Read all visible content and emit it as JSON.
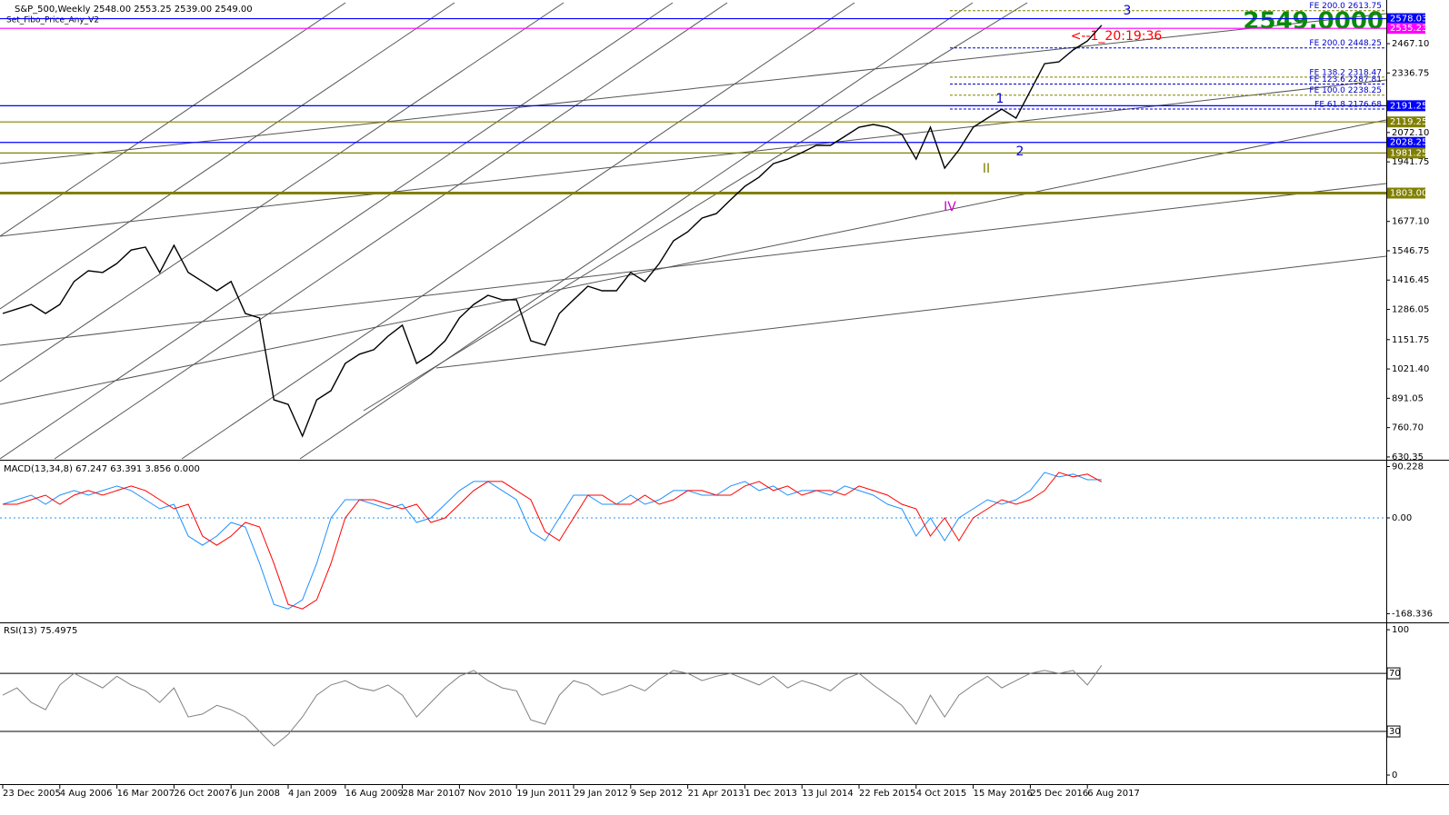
{
  "chart_data": [
    {
      "type": "line",
      "title": "S&P_500,Weekly  2548.00 2553.25 2539.00 2549.00",
      "subtitle": "Set_Fibo_Price_Any_V2",
      "price_label": "2549.0000",
      "categories": [
        "23 Dec 2005",
        null,
        null,
        null,
        "4 Aug 2006",
        null,
        null,
        null,
        "16 Mar 2007",
        null,
        null,
        null,
        "26 Oct 2007",
        null,
        null,
        null,
        "6 Jun 2008",
        null,
        null,
        null,
        "4 Jan 2009",
        null,
        null,
        null,
        "16 Aug 2009",
        null,
        null,
        null,
        "28 Mar 2010",
        null,
        null,
        null,
        "7 Nov 2010",
        null,
        null,
        null,
        "19 Jun 2011",
        null,
        null,
        null,
        "29 Jan 2012",
        null,
        null,
        null,
        "9 Sep 2012",
        null,
        null,
        null,
        "21 Apr 2013",
        null,
        null,
        null,
        "1 Dec 2013",
        null,
        null,
        null,
        "13 Jul 2014",
        null,
        null,
        null,
        "22 Feb 2015",
        null,
        null,
        null,
        "4 Oct 2015",
        null,
        null,
        null,
        "15 May 2016",
        null,
        null,
        null,
        "25 Dec 2016",
        null,
        null,
        null,
        "6 Aug 2017",
        null
      ],
      "series": [
        {
          "color": "#000000",
          "values": [
            1268,
            1288,
            1308,
            1268,
            1308,
            1410,
            1458,
            1450,
            1490,
            1550,
            1563,
            1450,
            1571,
            1450,
            1410,
            1369,
            1410,
            1268,
            1248,
            884,
            864,
            723,
            884,
            925,
            1046,
            1087,
            1107,
            1167,
            1216,
            1046,
            1087,
            1147,
            1248,
            1308,
            1349,
            1329,
            1329,
            1147,
            1127,
            1268,
            1329,
            1389,
            1369,
            1369,
            1450,
            1410,
            1490,
            1591,
            1631,
            1692,
            1712,
            1773,
            1833,
            1874,
            1934,
            1954,
            1983,
            2015,
            2015,
            2055,
            2096,
            2108,
            2096,
            2064,
            1954,
            2096,
            1914,
            1995,
            2096,
            2136,
            2176,
            2136,
            2257,
            2378,
            2386,
            2439,
            2479,
            2549
          ]
        }
      ],
      "ylim": [
        622,
        2649
      ],
      "yticks": [
        {
          "value": 2467.1,
          "label": "2467.10"
        },
        2336.75,
        {
          "value": 2072.1,
          "label": "2072.10"
        },
        1941.75,
        {
          "value": 1677.1,
          "label": "1677.10"
        },
        1546.75,
        1416.45,
        1286.05,
        1151.75,
        {
          "value": 1021.4,
          "label": "1021.40"
        },
        891.05,
        {
          "value": 760.7,
          "label": "760.70"
        },
        630.35
      ],
      "levels": [
        {
          "value": 2578.03,
          "color": "#0000ff"
        },
        {
          "value": 2535.23,
          "color": "#ff00ff"
        },
        {
          "value": 2191.25,
          "color": "#0000ff"
        },
        {
          "value": 2119.25,
          "color": "#808000"
        },
        {
          "value": 2028.25,
          "color": "#0000ff"
        },
        {
          "value": 1981.25,
          "color": "#808000"
        },
        {
          "value": 1803,
          "label": "1803.00",
          "color": "#808000"
        }
      ],
      "fibo": [
        {
          "value": 2613.75,
          "label": "FE 200.0  2613.75"
        },
        {
          "value": 2448.25,
          "label": "FE 200.0  2448.25"
        },
        {
          "value": 2318.47,
          "label": "FE 138.2  2318.47"
        },
        {
          "value": 2287.81,
          "label": "FE 123.6  2287.81"
        },
        {
          "value": 2238.25,
          "label": "FE 100.0  2238.25"
        },
        {
          "value": 2176.68,
          "label": "FE 61.8  2176.68"
        }
      ],
      "annotations": [
        "3",
        "1",
        "2",
        "II",
        "IV",
        "<--1_20:19:36"
      ]
    },
    {
      "type": "line",
      "title": "MACD(13,34,8) 67.247 63.391 3.856 0.000",
      "series": [
        {
          "color": "#1e90ff",
          "values": [
            24,
            32,
            40,
            24,
            40,
            48,
            40,
            48,
            56,
            48,
            32,
            16,
            24,
            -32,
            -48,
            -32,
            -8,
            -16,
            -80,
            -152,
            -160,
            -144,
            -80,
            0,
            32,
            32,
            24,
            16,
            24,
            -8,
            0,
            24,
            48,
            64,
            64,
            48,
            32,
            -24,
            -40,
            0,
            40,
            40,
            24,
            24,
            40,
            24,
            32,
            48,
            48,
            40,
            40,
            56,
            64,
            48,
            56,
            40,
            48,
            48,
            40,
            56,
            48,
            40,
            24,
            16,
            -32,
            0,
            -40,
            0,
            16,
            32,
            24,
            32,
            48,
            80,
            72,
            77,
            67,
            67.247
          ]
        },
        {
          "color": "#ff0000",
          "values": [
            24,
            24,
            32,
            40,
            24,
            40,
            48,
            40,
            48,
            56,
            48,
            32,
            16,
            24,
            -32,
            -48,
            -32,
            -8,
            -16,
            -80,
            -152,
            -160,
            -144,
            -80,
            0,
            32,
            32,
            24,
            16,
            24,
            -8,
            0,
            24,
            48,
            64,
            64,
            48,
            32,
            -24,
            -40,
            0,
            40,
            40,
            24,
            24,
            40,
            24,
            32,
            48,
            48,
            40,
            40,
            56,
            64,
            48,
            56,
            40,
            48,
            48,
            40,
            56,
            48,
            40,
            24,
            16,
            -32,
            0,
            -40,
            0,
            16,
            32,
            24,
            32,
            48,
            80,
            72,
            77,
            63.391
          ]
        }
      ],
      "ylim": [
        -182,
        99
      ],
      "yticks": [
        90.228,
        {
          "value": 0,
          "label": "0.00"
        },
        -168.336
      ]
    },
    {
      "type": "line",
      "title": "RSI(13) 75.4975",
      "series": [
        {
          "color": "#808080",
          "values": [
            55,
            60,
            50,
            45,
            62,
            70,
            65,
            60,
            68,
            62,
            58,
            50,
            60,
            40,
            42,
            48,
            45,
            40,
            30,
            20,
            28,
            40,
            55,
            62,
            65,
            60,
            58,
            62,
            55,
            40,
            50,
            60,
            68,
            72,
            65,
            60,
            58,
            38,
            35,
            55,
            65,
            62,
            55,
            58,
            62,
            58,
            66,
            72,
            70,
            65,
            68,
            70,
            66,
            62,
            68,
            60,
            65,
            62,
            58,
            66,
            70,
            62,
            55,
            48,
            35,
            55,
            40,
            55,
            62,
            68,
            60,
            65,
            70,
            72,
            70,
            72,
            62,
            75.4975
          ]
        }
      ],
      "ylim": [
        -5.6,
        103.8
      ],
      "yticks": [
        0,
        100
      ],
      "levels": [
        30,
        70
      ]
    }
  ]
}
